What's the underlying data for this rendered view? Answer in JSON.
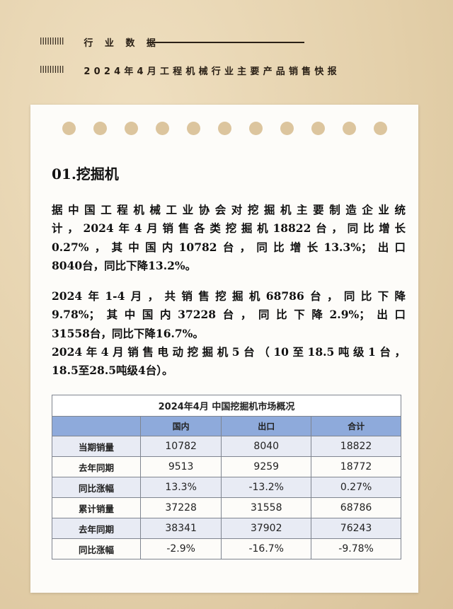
{
  "header": {
    "bars": "IIIIIIIIII",
    "section": "行 业 数 据",
    "subtitle": "2024年4月工程机械行业主要产品销售快报"
  },
  "article": {
    "title": "01.挖掘机",
    "paragraph1": [
      "据中国工程机械工业协会对挖掘机主要制造企业统",
      "计，2024年4月销售各类挖掘机18822台，同比增长",
      "0.27%，其中国内10782台，同比增长13.3%；出口",
      "8040台，同比下降13.2%。"
    ],
    "paragraph2": [
      "2024年1-4月，共销售挖掘机68786台，同比下降",
      "9.78%；其中国内37228台，同比下降2.9%；出口",
      "31558台，同比下降16.7%。",
      "2024年4月销售电动挖掘机5台（10至18.5吨级1台，",
      "18.5至28.5吨级4台）。"
    ]
  },
  "table": {
    "caption": "2024年4月 中国挖掘机市场概况",
    "columns": [
      "",
      "国内",
      "出口",
      "合计"
    ],
    "rows": [
      [
        "当期销量",
        "10782",
        "8040",
        "18822"
      ],
      [
        "去年同期",
        "9513",
        "9259",
        "18772"
      ],
      [
        "同比涨幅",
        "13.3%",
        "-13.2%",
        "0.27%"
      ],
      [
        "累计销量",
        "37228",
        "31558",
        "68786"
      ],
      [
        "去年同期",
        "38341",
        "37902",
        "76243"
      ],
      [
        "同比涨幅",
        "-2.9%",
        "-16.7%",
        "-9.78%"
      ]
    ]
  },
  "colors": {
    "table_header": "#8eaadb",
    "background": "#e8d6b4"
  }
}
